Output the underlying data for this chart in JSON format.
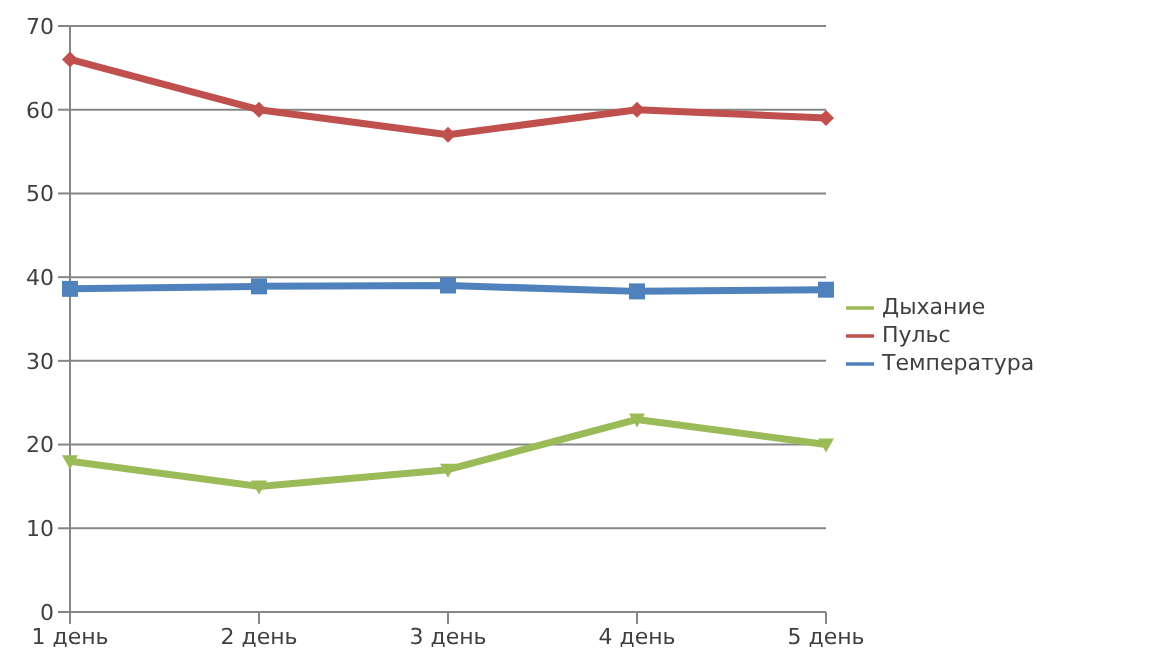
{
  "chart_data": {
    "type": "line",
    "categories": [
      "1 день",
      "2 день",
      "3 день",
      "4 день",
      "5 день"
    ],
    "series": [
      {
        "name": "Температура",
        "color": "#4f81bd",
        "marker": "square",
        "values": [
          38.6,
          38.9,
          39,
          38.3,
          38.5
        ]
      },
      {
        "name": "Пульс",
        "color": "#c0504d",
        "marker": "diamond",
        "values": [
          66,
          60,
          57,
          60,
          59
        ]
      },
      {
        "name": "Дыхание",
        "color": "#9bbb59",
        "marker": "triangle",
        "values": [
          18,
          15,
          17,
          23,
          20
        ]
      }
    ],
    "ylim": [
      0,
      70
    ],
    "yticks": [
      0,
      10,
      20,
      30,
      40,
      50,
      60,
      70
    ],
    "grid": "y",
    "legend": "right"
  }
}
